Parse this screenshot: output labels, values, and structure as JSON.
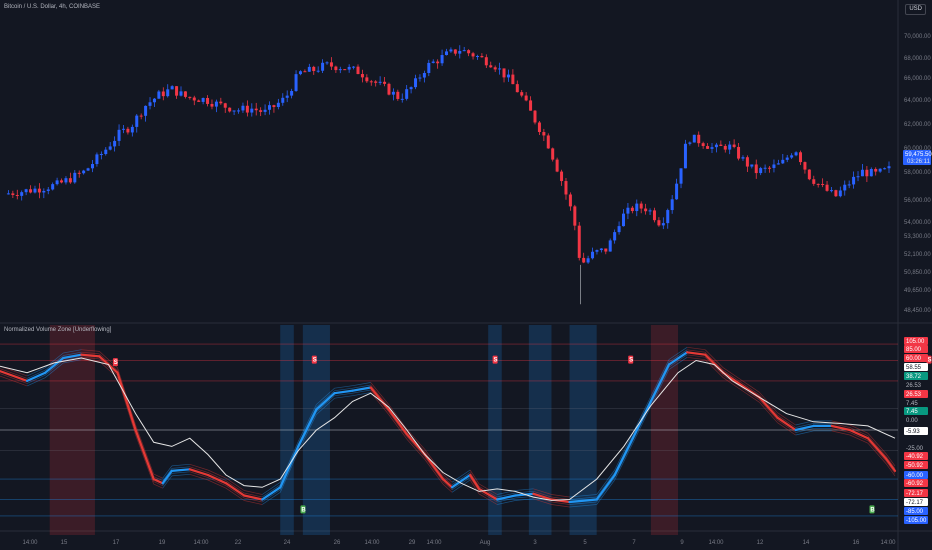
{
  "header": {
    "symbol_title": "Bitcoin / U.S. Dollar, 4h, COINBASE",
    "currency_button": "USD"
  },
  "indicator": {
    "title": "Normalized Volume Zone [Underflowing]"
  },
  "colors": {
    "background": "#131722",
    "up_candle": "#2962ff",
    "down_candle": "#f23645",
    "osc_blue": "#2196f3",
    "osc_red": "#e53935",
    "signal_line": "#e6e6e6",
    "zone_red": "#f23645",
    "zone_blue": "#1e88e5"
  },
  "price_axis": {
    "ticks": [
      "70,000.00",
      "68,000.00",
      "66,000.00",
      "64,000.00",
      "62,000.00",
      "60,000.00",
      "58,000.00",
      "56,000.00",
      "54,000.00",
      "53,300.00",
      "52,100.00",
      "50,850.00",
      "49,650.00",
      "48,450.00"
    ],
    "last_price_label": "59,475.50",
    "last_price_countdown": "03:26:11"
  },
  "indicator_axis": {
    "labels": [
      {
        "text": "105.00",
        "tone": "red"
      },
      {
        "text": "85.00",
        "tone": "red"
      },
      {
        "text": "60.00",
        "tone": "red"
      },
      {
        "text": "58.55",
        "tone": "white"
      },
      {
        "text": "38.72",
        "tone": "green"
      },
      {
        "text": "26.53",
        "tone": "plain"
      },
      {
        "text": "26.53",
        "tone": "red"
      },
      {
        "text": "7.45",
        "tone": "plain"
      },
      {
        "text": "7.45",
        "tone": "green"
      },
      {
        "text": "0.00",
        "tone": "grey"
      },
      {
        "text": "-5.93",
        "tone": "white"
      },
      {
        "text": "-25.00",
        "tone": "plain"
      },
      {
        "text": "-40.92",
        "tone": "red"
      },
      {
        "text": "-50.92",
        "tone": "red"
      },
      {
        "text": "-60.00",
        "tone": "blue"
      },
      {
        "text": "-60.92",
        "tone": "red"
      },
      {
        "text": "-72.17",
        "tone": "red"
      },
      {
        "text": "-72.17",
        "tone": "white"
      },
      {
        "text": "-85.00",
        "tone": "blue"
      },
      {
        "text": "-105.00",
        "tone": "blue"
      }
    ]
  },
  "time_axis": {
    "labels": [
      "14:00",
      "15",
      "17",
      "19",
      "14:00",
      "22",
      "24",
      "26",
      "14:00",
      "29",
      "14:00",
      "Aug",
      "3",
      "5",
      "7",
      "9",
      "14:00",
      "12",
      "14",
      "16",
      "14:00"
    ]
  },
  "signals": {
    "sell_label": "S",
    "buy_label": "B"
  },
  "chart_data": {
    "type": "candlestick",
    "title": "Bitcoin / U.S. Dollar, 4h, COINBASE",
    "y_range": [
      48000,
      71000
    ],
    "close_path": [
      [
        0,
        57600
      ],
      [
        4,
        57900
      ],
      [
        8,
        58300
      ],
      [
        12,
        59300
      ],
      [
        15,
        60900
      ],
      [
        17,
        62100
      ],
      [
        19,
        62800
      ],
      [
        21,
        64300
      ],
      [
        23,
        65100
      ],
      [
        25,
        65600
      ],
      [
        27,
        65000
      ],
      [
        30,
        64800
      ],
      [
        32,
        64400
      ],
      [
        35,
        64000
      ],
      [
        37,
        64100
      ],
      [
        39,
        63800
      ],
      [
        42,
        64900
      ],
      [
        44,
        66800
      ],
      [
        46,
        67000
      ],
      [
        48,
        67400
      ],
      [
        50,
        67300
      ],
      [
        53,
        66900
      ],
      [
        55,
        66200
      ],
      [
        57,
        65600
      ],
      [
        59,
        64900
      ],
      [
        61,
        65800
      ],
      [
        63,
        67300
      ],
      [
        66,
        68200
      ],
      [
        68,
        68600
      ],
      [
        70,
        68200
      ],
      [
        73,
        67500
      ],
      [
        75,
        66500
      ],
      [
        77,
        65200
      ],
      [
        79,
        63400
      ],
      [
        81,
        61600
      ],
      [
        83,
        58900
      ],
      [
        85,
        55700
      ],
      [
        86,
        52200
      ],
      [
        88,
        53100
      ],
      [
        90,
        53400
      ],
      [
        92,
        55800
      ],
      [
        94,
        56600
      ],
      [
        96,
        56500
      ],
      [
        98,
        55300
      ],
      [
        100,
        57800
      ],
      [
        102,
        61900
      ],
      [
        104,
        61600
      ],
      [
        106,
        61000
      ],
      [
        108,
        61300
      ],
      [
        110,
        60300
      ],
      [
        112,
        59300
      ],
      [
        114,
        59500
      ],
      [
        116,
        59900
      ],
      [
        118,
        61100
      ],
      [
        120,
        59000
      ],
      [
        122,
        58100
      ],
      [
        124,
        57400
      ],
      [
        126,
        58400
      ],
      [
        128,
        59300
      ],
      [
        130,
        59100
      ],
      [
        132,
        59470
      ]
    ],
    "oscillator": {
      "y_range": [
        -110,
        110
      ],
      "levels": [
        105,
        85,
        60,
        26.53,
        0,
        -25,
        -60,
        -85,
        -105
      ],
      "main": [
        [
          0,
          72
        ],
        [
          3,
          60
        ],
        [
          5,
          70
        ],
        [
          7,
          88
        ],
        [
          9,
          92
        ],
        [
          11,
          90
        ],
        [
          13,
          70
        ],
        [
          15,
          0
        ],
        [
          17,
          -60
        ],
        [
          18,
          -65
        ],
        [
          19,
          -50
        ],
        [
          21,
          -48
        ],
        [
          23,
          -55
        ],
        [
          25,
          -65
        ],
        [
          27,
          -80
        ],
        [
          29,
          -85
        ],
        [
          31,
          -70
        ],
        [
          33,
          -20
        ],
        [
          35,
          25
        ],
        [
          37,
          45
        ],
        [
          39,
          48
        ],
        [
          41,
          52
        ],
        [
          43,
          25
        ],
        [
          45,
          -5
        ],
        [
          47,
          -30
        ],
        [
          49,
          -60
        ],
        [
          50,
          -70
        ],
        [
          52,
          -55
        ],
        [
          53,
          -72
        ],
        [
          55,
          -85
        ],
        [
          57,
          -80
        ],
        [
          59,
          -78
        ],
        [
          61,
          -85
        ],
        [
          63,
          -88
        ],
        [
          66,
          -85
        ],
        [
          68,
          -55
        ],
        [
          70,
          -10
        ],
        [
          72,
          35
        ],
        [
          74,
          80
        ],
        [
          76,
          95
        ],
        [
          78,
          92
        ],
        [
          80,
          70
        ],
        [
          82,
          55
        ],
        [
          84,
          40
        ],
        [
          86,
          15
        ],
        [
          88,
          0
        ],
        [
          90,
          5
        ],
        [
          92,
          5
        ],
        [
          94,
          0
        ],
        [
          96,
          -10
        ],
        [
          98,
          -35
        ],
        [
          99,
          -50
        ]
      ],
      "signal": [
        [
          0,
          78
        ],
        [
          3,
          70
        ],
        [
          6,
          82
        ],
        [
          9,
          88
        ],
        [
          12,
          80
        ],
        [
          15,
          20
        ],
        [
          17,
          -15
        ],
        [
          19,
          -20
        ],
        [
          21,
          -10
        ],
        [
          23,
          -30
        ],
        [
          25,
          -55
        ],
        [
          27,
          -68
        ],
        [
          29,
          -70
        ],
        [
          31,
          -60
        ],
        [
          33,
          -25
        ],
        [
          35,
          0
        ],
        [
          37,
          15
        ],
        [
          39,
          35
        ],
        [
          41,
          45
        ],
        [
          43,
          28
        ],
        [
          45,
          0
        ],
        [
          47,
          -30
        ],
        [
          49,
          -52
        ],
        [
          51,
          -65
        ],
        [
          53,
          -75
        ],
        [
          55,
          -72
        ],
        [
          57,
          -75
        ],
        [
          59,
          -82
        ],
        [
          61,
          -86
        ],
        [
          63,
          -85
        ],
        [
          66,
          -60
        ],
        [
          69,
          -20
        ],
        [
          72,
          30
        ],
        [
          75,
          70
        ],
        [
          77,
          85
        ],
        [
          79,
          80
        ],
        [
          81,
          60
        ],
        [
          84,
          40
        ],
        [
          87,
          20
        ],
        [
          90,
          10
        ],
        [
          93,
          8
        ],
        [
          96,
          5
        ],
        [
          99,
          -10
        ]
      ]
    },
    "zones": [
      {
        "type": "red",
        "from": 5.5,
        "to": 10.5
      },
      {
        "type": "blue",
        "from": 31,
        "to": 32.5
      },
      {
        "type": "blue",
        "from": 33.5,
        "to": 36.5
      },
      {
        "type": "blue",
        "from": 54,
        "to": 55.5
      },
      {
        "type": "blue",
        "from": 58.5,
        "to": 61
      },
      {
        "type": "blue",
        "from": 63,
        "to": 66
      },
      {
        "type": "red",
        "from": 72,
        "to": 75
      }
    ]
  }
}
